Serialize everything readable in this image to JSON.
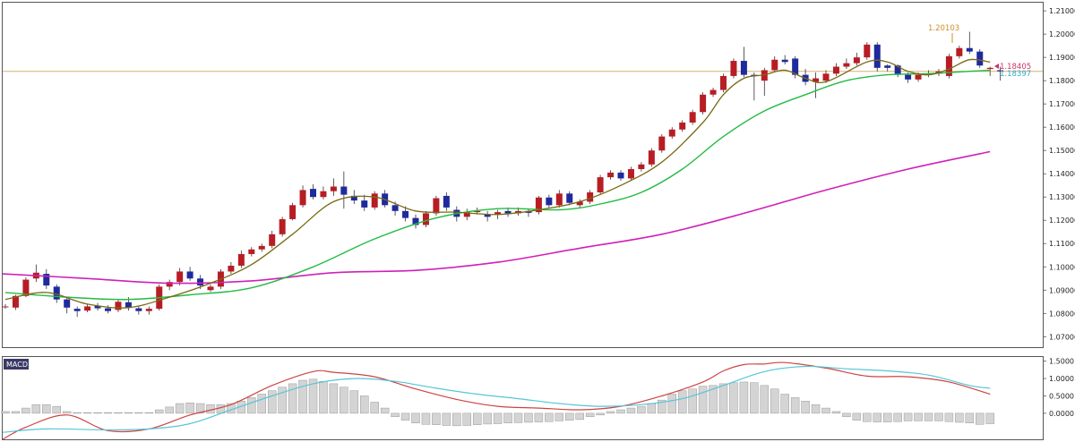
{
  "colors": {
    "bull": "#b81d24",
    "bear": "#1f2a9e",
    "ma_fast": "#7a6a14",
    "ma_mid": "#22bb44",
    "ma_slow": "#d020b8",
    "hline": "#d8b070",
    "macd_line": "#cc4444",
    "signal_line": "#55c6d6",
    "hist": "#d4d4d4"
  },
  "chart_data": [
    {
      "type": "candlestick",
      "y_ticks": [
        "1.21000",
        "1.20000",
        "1.19000",
        "1.18000",
        "1.17000",
        "1.16000",
        "1.15000",
        "1.14000",
        "1.13000",
        "1.12000",
        "1.11000",
        "1.10000",
        "1.09000",
        "1.08000",
        "1.07000"
      ],
      "ylim": [
        1.0655,
        1.2135
      ],
      "grid": false,
      "horizontal_line": 1.184,
      "annotations": {
        "high_label": "1.20103",
        "price_label_1": "1.18405",
        "price_label_2": "1.18397"
      },
      "candles": [
        [
          1.083,
          1.083,
          1.084,
          1.082
        ],
        [
          1.0825,
          1.0875,
          1.088,
          1.0815
        ],
        [
          1.0875,
          1.0945,
          1.0955,
          1.087
        ],
        [
          1.095,
          1.0975,
          1.101,
          1.0935
        ],
        [
          1.097,
          1.092,
          1.099,
          1.0905
        ],
        [
          1.0915,
          1.086,
          1.0925,
          1.0845
        ],
        [
          1.086,
          1.0825,
          1.087,
          1.08
        ],
        [
          1.082,
          1.081,
          1.083,
          1.0785
        ],
        [
          1.0812,
          1.083,
          1.084,
          1.0805
        ],
        [
          1.0832,
          1.0822,
          1.0845,
          1.0812
        ],
        [
          1.0822,
          1.081,
          1.0835,
          1.08
        ],
        [
          1.0815,
          1.085,
          1.086,
          1.0805
        ],
        [
          1.0848,
          1.0825,
          1.087,
          1.0812
        ],
        [
          1.0822,
          1.081,
          1.083,
          1.0795
        ],
        [
          1.081,
          1.082,
          1.083,
          1.0795
        ],
        [
          1.082,
          1.0915,
          1.0925,
          1.0812
        ],
        [
          1.0915,
          1.0935,
          1.0945,
          1.09
        ],
        [
          1.0935,
          1.098,
          1.0995,
          1.092
        ],
        [
          1.098,
          1.095,
          1.1,
          1.094
        ],
        [
          1.095,
          1.092,
          1.0965,
          1.0905
        ],
        [
          1.09,
          1.0915,
          1.0925,
          1.0892
        ],
        [
          1.0915,
          1.098,
          1.099,
          1.0905
        ],
        [
          1.098,
          1.1005,
          1.102,
          1.097
        ],
        [
          1.1005,
          1.1055,
          1.107,
          1.0995
        ],
        [
          1.1055,
          1.1075,
          1.1085,
          1.1045
        ],
        [
          1.1075,
          1.109,
          1.11,
          1.1065
        ],
        [
          1.109,
          1.114,
          1.1155,
          1.108
        ],
        [
          1.114,
          1.1205,
          1.1215,
          1.113
        ],
        [
          1.1205,
          1.1265,
          1.1275,
          1.12
        ],
        [
          1.1265,
          1.133,
          1.135,
          1.1255
        ],
        [
          1.1335,
          1.13,
          1.1355,
          1.129
        ],
        [
          1.13,
          1.1325,
          1.1345,
          1.129
        ],
        [
          1.1325,
          1.1345,
          1.138,
          1.1305
        ],
        [
          1.1345,
          1.131,
          1.141,
          1.125
        ],
        [
          1.1305,
          1.1285,
          1.133,
          1.127
        ],
        [
          1.1285,
          1.1255,
          1.131,
          1.124
        ],
        [
          1.1255,
          1.1315,
          1.1325,
          1.1245
        ],
        [
          1.1315,
          1.1265,
          1.133,
          1.1255
        ],
        [
          1.1265,
          1.124,
          1.128,
          1.122
        ],
        [
          1.124,
          1.121,
          1.126,
          1.1195
        ],
        [
          1.121,
          1.118,
          1.1225,
          1.1165
        ],
        [
          1.118,
          1.123,
          1.124,
          1.117
        ],
        [
          1.123,
          1.1295,
          1.1305,
          1.122
        ],
        [
          1.1305,
          1.1255,
          1.132,
          1.124
        ],
        [
          1.1245,
          1.1215,
          1.126,
          1.1195
        ],
        [
          1.1215,
          1.1235,
          1.125,
          1.12
        ],
        [
          1.1235,
          1.124,
          1.1255,
          1.1225
        ],
        [
          1.1225,
          1.1215,
          1.124,
          1.1195
        ],
        [
          1.1225,
          1.1235,
          1.1245,
          1.1205
        ],
        [
          1.124,
          1.123,
          1.1255,
          1.1215
        ],
        [
          1.123,
          1.124,
          1.1255,
          1.122
        ],
        [
          1.124,
          1.1232,
          1.125,
          1.1215
        ],
        [
          1.1235,
          1.1298,
          1.1305,
          1.1225
        ],
        [
          1.1298,
          1.1265,
          1.131,
          1.1255
        ],
        [
          1.1265,
          1.1315,
          1.133,
          1.1255
        ],
        [
          1.1315,
          1.1275,
          1.1325,
          1.1265
        ],
        [
          1.1265,
          1.128,
          1.129,
          1.1255
        ],
        [
          1.128,
          1.132,
          1.133,
          1.127
        ],
        [
          1.132,
          1.1385,
          1.1395,
          1.131
        ],
        [
          1.1385,
          1.1405,
          1.1415,
          1.1375
        ],
        [
          1.1405,
          1.138,
          1.1415,
          1.137
        ],
        [
          1.138,
          1.142,
          1.143,
          1.137
        ],
        [
          1.142,
          1.144,
          1.145,
          1.141
        ],
        [
          1.144,
          1.15,
          1.151,
          1.143
        ],
        [
          1.15,
          1.156,
          1.157,
          1.149
        ],
        [
          1.156,
          1.159,
          1.16,
          1.155
        ],
        [
          1.159,
          1.162,
          1.163,
          1.158
        ],
        [
          1.162,
          1.1665,
          1.1675,
          1.161
        ],
        [
          1.1665,
          1.174,
          1.175,
          1.1655
        ],
        [
          1.174,
          1.176,
          1.177,
          1.173
        ],
        [
          1.176,
          1.182,
          1.183,
          1.175
        ],
        [
          1.182,
          1.1885,
          1.1895,
          1.181
        ],
        [
          1.1885,
          1.1825,
          1.1945,
          1.1815
        ],
        [
          1.1825,
          1.182,
          1.1835,
          1.1715
        ],
        [
          1.18,
          1.1845,
          1.1855,
          1.1735
        ],
        [
          1.1845,
          1.189,
          1.1905,
          1.1835
        ],
        [
          1.189,
          1.188,
          1.191,
          1.187
        ],
        [
          1.1895,
          1.1825,
          1.1905,
          1.181
        ],
        [
          1.1825,
          1.1795,
          1.185,
          1.178
        ],
        [
          1.1795,
          1.181,
          1.1835,
          1.1725
        ],
        [
          1.18,
          1.183,
          1.1845,
          1.179
        ],
        [
          1.183,
          1.186,
          1.1875,
          1.182
        ],
        [
          1.186,
          1.1875,
          1.1895,
          1.185
        ],
        [
          1.1875,
          1.19,
          1.192,
          1.1865
        ],
        [
          1.19,
          1.1955,
          1.1965,
          1.189
        ],
        [
          1.1955,
          1.1855,
          1.1965,
          1.184
        ],
        [
          1.1865,
          1.1855,
          1.187,
          1.184
        ],
        [
          1.1865,
          1.1825,
          1.187,
          1.1815
        ],
        [
          1.1825,
          1.1805,
          1.1835,
          1.179
        ],
        [
          1.1805,
          1.1825,
          1.1835,
          1.1795
        ],
        [
          1.1825,
          1.183,
          1.1845,
          1.1815
        ],
        [
          1.183,
          1.184,
          1.185,
          1.182
        ],
        [
          1.182,
          1.1905,
          1.1915,
          1.181
        ],
        [
          1.1905,
          1.194,
          1.195,
          1.1895
        ],
        [
          1.194,
          1.1925,
          1.201,
          1.1915
        ],
        [
          1.1925,
          1.1865,
          1.1935,
          1.1855
        ],
        [
          1.185,
          1.1855,
          1.186,
          1.182
        ],
        [
          1.1845,
          1.184,
          1.186,
          1.18
        ]
      ],
      "ma_fast": [
        [
          0,
          1.086
        ],
        [
          4,
          1.089
        ],
        [
          8,
          1.084
        ],
        [
          12,
          1.0825
        ],
        [
          16,
          1.087
        ],
        [
          20,
          1.093
        ],
        [
          24,
          1.101
        ],
        [
          28,
          1.114
        ],
        [
          32,
          1.128
        ],
        [
          36,
          1.13
        ],
        [
          40,
          1.124
        ],
        [
          44,
          1.1235
        ],
        [
          48,
          1.1225
        ],
        [
          52,
          1.1245
        ],
        [
          56,
          1.128
        ],
        [
          60,
          1.135
        ],
        [
          64,
          1.145
        ],
        [
          68,
          1.162
        ],
        [
          70,
          1.174
        ],
        [
          72,
          1.181
        ],
        [
          74,
          1.1825
        ],
        [
          76,
          1.1845
        ],
        [
          78,
          1.181
        ],
        [
          80,
          1.1795
        ],
        [
          84,
          1.188
        ],
        [
          86,
          1.188
        ],
        [
          88,
          1.184
        ],
        [
          90,
          1.1825
        ],
        [
          92,
          1.185
        ],
        [
          94,
          1.189
        ],
        [
          96,
          1.188
        ]
      ],
      "ma_mid": [
        [
          0,
          1.089
        ],
        [
          6,
          1.087
        ],
        [
          12,
          1.086
        ],
        [
          18,
          1.088
        ],
        [
          24,
          1.091
        ],
        [
          30,
          1.1
        ],
        [
          36,
          1.112
        ],
        [
          42,
          1.121
        ],
        [
          48,
          1.125
        ],
        [
          54,
          1.1245
        ],
        [
          58,
          1.127
        ],
        [
          62,
          1.132
        ],
        [
          66,
          1.142
        ],
        [
          70,
          1.156
        ],
        [
          74,
          1.167
        ],
        [
          78,
          1.174
        ],
        [
          82,
          1.18
        ],
        [
          86,
          1.1825
        ],
        [
          90,
          1.183
        ],
        [
          94,
          1.184
        ],
        [
          96,
          1.1845
        ]
      ],
      "ma_slow": [
        [
          -1,
          1.097
        ],
        [
          8,
          1.095
        ],
        [
          16,
          1.093
        ],
        [
          24,
          1.094
        ],
        [
          32,
          1.0975
        ],
        [
          40,
          1.0985
        ],
        [
          48,
          1.102
        ],
        [
          56,
          1.108
        ],
        [
          64,
          1.114
        ],
        [
          72,
          1.123
        ],
        [
          80,
          1.133
        ],
        [
          88,
          1.142
        ],
        [
          96,
          1.1495
        ]
      ]
    },
    {
      "type": "macd",
      "label": "MACD",
      "y_ticks": [
        "1.5000",
        "1.0000",
        "0.5000",
        "0.0000"
      ],
      "ylim": [
        -0.75,
        1.62
      ],
      "macd": [
        [
          -1,
          -0.75
        ],
        [
          2,
          -0.4
        ],
        [
          6,
          -0.05
        ],
        [
          10,
          -0.5
        ],
        [
          14,
          -0.45
        ],
        [
          18,
          -0.05
        ],
        [
          22,
          0.25
        ],
        [
          26,
          0.8
        ],
        [
          30,
          1.2
        ],
        [
          32,
          1.18
        ],
        [
          36,
          1.05
        ],
        [
          40,
          0.7
        ],
        [
          44,
          0.4
        ],
        [
          48,
          0.2
        ],
        [
          52,
          0.15
        ],
        [
          56,
          0.1
        ],
        [
          60,
          0.2
        ],
        [
          64,
          0.5
        ],
        [
          68,
          0.9
        ],
        [
          70,
          1.22
        ],
        [
          72,
          1.4
        ],
        [
          74,
          1.42
        ],
        [
          76,
          1.46
        ],
        [
          80,
          1.3
        ],
        [
          84,
          1.07
        ],
        [
          88,
          1.05
        ],
        [
          92,
          0.9
        ],
        [
          96,
          0.55
        ]
      ],
      "signal": [
        [
          -1,
          -0.55
        ],
        [
          4,
          -0.45
        ],
        [
          10,
          -0.48
        ],
        [
          14,
          -0.45
        ],
        [
          18,
          -0.3
        ],
        [
          22,
          0.1
        ],
        [
          26,
          0.5
        ],
        [
          30,
          0.85
        ],
        [
          34,
          1.0
        ],
        [
          38,
          0.92
        ],
        [
          42,
          0.72
        ],
        [
          46,
          0.55
        ],
        [
          50,
          0.42
        ],
        [
          54,
          0.28
        ],
        [
          58,
          0.2
        ],
        [
          62,
          0.25
        ],
        [
          66,
          0.42
        ],
        [
          70,
          0.8
        ],
        [
          74,
          1.2
        ],
        [
          78,
          1.35
        ],
        [
          82,
          1.28
        ],
        [
          86,
          1.22
        ],
        [
          90,
          1.1
        ],
        [
          94,
          0.8
        ],
        [
          96,
          0.72
        ]
      ],
      "histogram": [
        0.05,
        0.05,
        0.15,
        0.25,
        0.25,
        0.2,
        0.05,
        0.02,
        0.02,
        0.02,
        0.02,
        0.02,
        0.02,
        0.02,
        0.02,
        0.1,
        0.18,
        0.28,
        0.3,
        0.28,
        0.25,
        0.25,
        0.28,
        0.35,
        0.45,
        0.55,
        0.65,
        0.75,
        0.85,
        0.95,
        0.98,
        0.92,
        0.85,
        0.75,
        0.65,
        0.5,
        0.32,
        0.15,
        -0.1,
        -0.2,
        -0.28,
        -0.32,
        -0.33,
        -0.35,
        -0.36,
        -0.35,
        -0.33,
        -0.31,
        -0.3,
        -0.28,
        -0.27,
        -0.26,
        -0.25,
        -0.24,
        -0.22,
        -0.2,
        -0.18,
        -0.1,
        -0.05,
        0.05,
        0.1,
        0.15,
        0.2,
        0.28,
        0.38,
        0.55,
        0.65,
        0.7,
        0.78,
        0.8,
        0.85,
        0.88,
        0.9,
        0.88,
        0.8,
        0.7,
        0.55,
        0.45,
        0.35,
        0.25,
        0.15,
        0.05,
        -0.1,
        -0.2,
        -0.24,
        -0.25,
        -0.25,
        -0.24,
        -0.22,
        -0.22,
        -0.22,
        -0.22,
        -0.24,
        -0.26,
        -0.28,
        -0.32,
        -0.3
      ]
    }
  ]
}
